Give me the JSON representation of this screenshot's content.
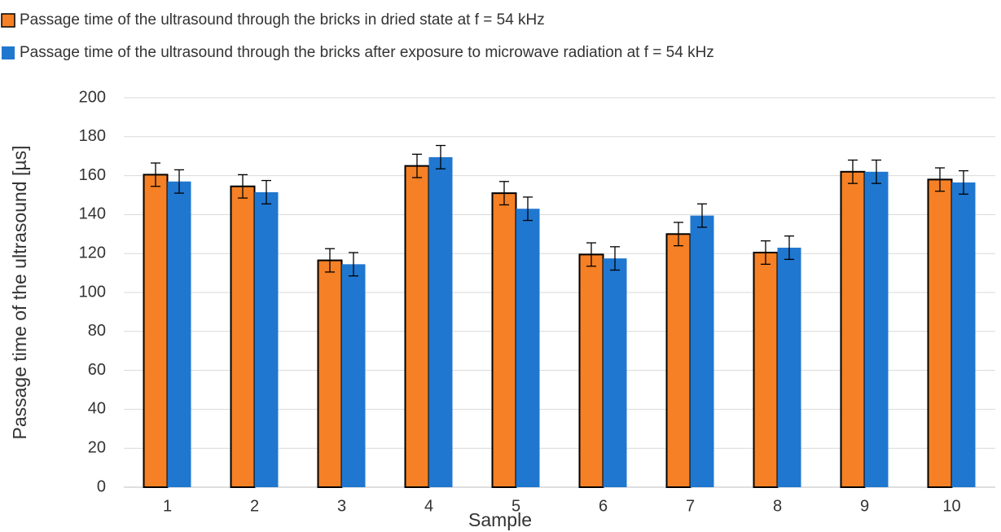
{
  "chart_data": {
    "type": "bar",
    "x_label": "Sample",
    "y_label": "Passage time of the ultrasound [µs]",
    "categories": [
      "1",
      "2",
      "3",
      "4",
      "5",
      "6",
      "7",
      "8",
      "9",
      "10"
    ],
    "series": [
      {
        "name": "Passage time of the ultrasound through the bricks in dried state at f = 54 kHz",
        "color": "#f58025",
        "values": [
          160.5,
          154.5,
          116.5,
          165,
          151,
          119.5,
          130,
          120.5,
          162,
          158
        ],
        "errors": [
          6,
          6,
          6,
          6,
          6,
          6,
          6,
          6,
          6,
          6
        ]
      },
      {
        "name": "Passage time of the ultrasound through the bricks after exposure to microwave radiation at f = 54 kHz",
        "color": "#1f77d0",
        "values": [
          157,
          151.5,
          114.5,
          169.5,
          143,
          117.5,
          139.5,
          123,
          162,
          156.5
        ],
        "errors": [
          6,
          6,
          6,
          6,
          6,
          6,
          6,
          6,
          6,
          6
        ]
      }
    ],
    "ylim": [
      0,
      200
    ],
    "yticks": [
      0,
      20,
      40,
      60,
      80,
      100,
      120,
      140,
      160,
      180,
      200
    ],
    "grid": true
  }
}
